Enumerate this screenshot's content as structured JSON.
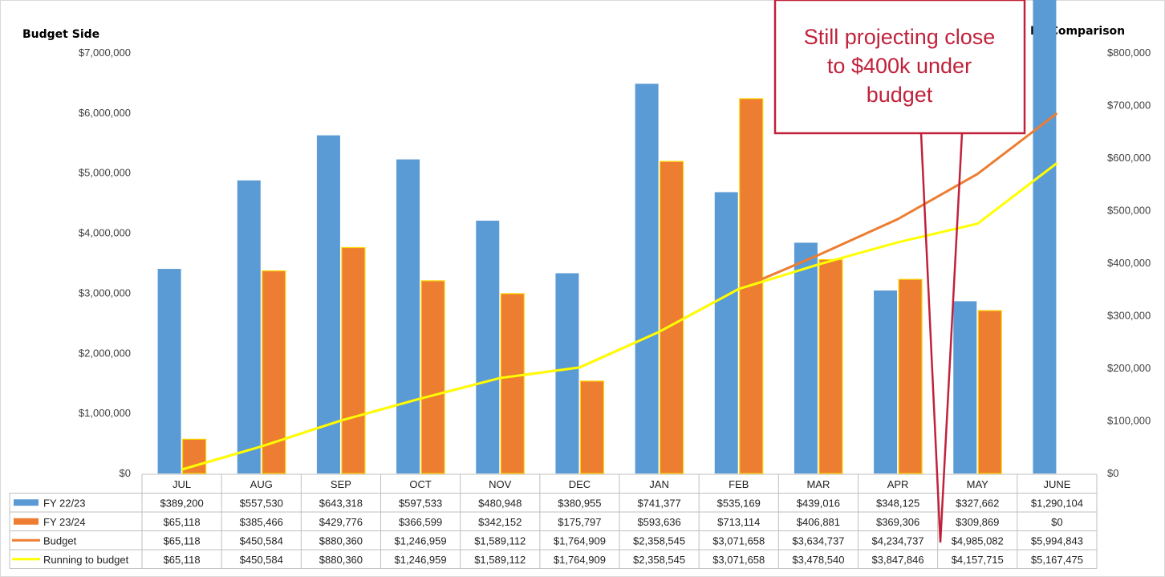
{
  "chart_data": {
    "type": "bar",
    "title": "",
    "left_axis_title": "Budget Side",
    "right_axis_title": "FY Comparison",
    "categories": [
      "JUL",
      "AUG",
      "SEP",
      "OCT",
      "NOV",
      "DEC",
      "JAN",
      "FEB",
      "MAR",
      "APR",
      "MAY",
      "JUNE"
    ],
    "left_ticks": [
      "$0",
      "$1,000,000",
      "$2,000,000",
      "$3,000,000",
      "$4,000,000",
      "$5,000,000",
      "$6,000,000",
      "$7,000,000"
    ],
    "right_ticks": [
      "$0",
      "$100,000",
      "$200,000",
      "$300,000",
      "$400,000",
      "$500,000",
      "$600,000",
      "$700,000",
      "$800,000"
    ],
    "left_ylim": [
      0,
      7000000
    ],
    "right_ylim": [
      0,
      800000
    ],
    "legend_placement": "data table below chart",
    "series": [
      {
        "name": "FY 22/23",
        "kind": "bar",
        "axis": "left",
        "color": "#5b9bd5",
        "values": [
          389200,
          557530,
          643318,
          597533,
          480948,
          380955,
          741377,
          535169,
          439016,
          348125,
          327662,
          1290104
        ],
        "labels": [
          "$389,200",
          "$557,530",
          "$643,318",
          "$597,533",
          "$480,948",
          "$380,955",
          "$741,377",
          "$535,169",
          "$439,016",
          "$348,125",
          "$327,662",
          "$1,290,104"
        ]
      },
      {
        "name": "FY 23/24",
        "kind": "bar",
        "axis": "left",
        "color": "#ed7d31",
        "values": [
          65118,
          385466,
          429776,
          366599,
          342152,
          175797,
          593636,
          713114,
          406881,
          369306,
          309869,
          0
        ],
        "labels": [
          "$65,118",
          "$385,466",
          "$429,776",
          "$366,599",
          "$342,152",
          "$175,797",
          "$593,636",
          "$713,114",
          "$406,881",
          "$369,306",
          "$309,869",
          "$0"
        ]
      },
      {
        "name": "Budget",
        "kind": "line",
        "axis": "right",
        "color": "#ed7d31",
        "values": [
          65118,
          450584,
          880360,
          1246959,
          1589112,
          1764909,
          2358545,
          3071658,
          3634737,
          4234737,
          4985082,
          5994843
        ],
        "labels": [
          "$65,118",
          "$450,584",
          "$880,360",
          "$1,246,959",
          "$1,589,112",
          "$1,764,909",
          "$2,358,545",
          "$3,071,658",
          "$3,634,737",
          "$4,234,737",
          "$4,985,082",
          "$5,994,843"
        ]
      },
      {
        "name": "Running to budget",
        "kind": "line",
        "axis": "right",
        "color": "#ffff00",
        "values": [
          65118,
          450584,
          880360,
          1246959,
          1589112,
          1764909,
          2358545,
          3071658,
          3478540,
          3847846,
          4157715,
          5167475
        ],
        "labels": [
          "$65,118",
          "$450,584",
          "$880,360",
          "$1,246,959",
          "$1,589,112",
          "$1,764,909",
          "$2,358,545",
          "$3,071,658",
          "$3,478,540",
          "$3,847,846",
          "$4,157,715",
          "$5,167,475"
        ]
      }
    ],
    "annotation": {
      "lines": [
        "Still projecting close",
        "to $400k under",
        "budget"
      ],
      "border_color": "#c0223b",
      "text_color": "#c0223b"
    }
  }
}
